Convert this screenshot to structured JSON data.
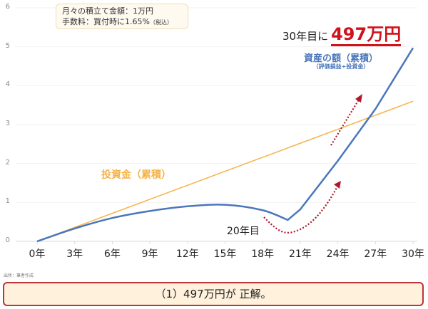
{
  "info_box": {
    "line1": "月々の積立て金額：1万円",
    "line2_main": "手数料：買付時に1.65%",
    "line2_small": "（税込）"
  },
  "headline": {
    "prefix": "30年目に",
    "value": "497万円"
  },
  "labels": {
    "asset_title": "資産の額（累積）",
    "asset_subtitle": "（評価損益+投資金）",
    "invest_title": "投資金（累積）",
    "year20": "20年目"
  },
  "source_note": "出所：筆者作成",
  "answer": "（1）497万円が 正解。",
  "colors": {
    "asset_line": "#4a76bb",
    "invest_line": "#f6b34a",
    "arrow": "#b0182a",
    "headline_red": "#d0121b",
    "answer_border": "#c0333b",
    "answer_bg": "#fff1dc"
  },
  "chart_data": {
    "type": "line",
    "title": "",
    "xlabel": "",
    "ylabel": "",
    "x": [
      0,
      3,
      6,
      9,
      12,
      15,
      18,
      20,
      21,
      24,
      27,
      30
    ],
    "x_tick_labels": [
      "0年",
      "3年",
      "6年",
      "9年",
      "12年",
      "15年",
      "18年",
      "21年",
      "24年",
      "27年",
      "30年"
    ],
    "y_ticks": [
      0,
      1,
      2,
      3,
      4,
      5,
      6
    ],
    "ylim": [
      0,
      6
    ],
    "xlim": [
      0,
      30
    ],
    "grid": true,
    "series": [
      {
        "name": "資産の額（累積）",
        "values": [
          0,
          0.33,
          0.6,
          0.78,
          0.9,
          0.94,
          0.8,
          0.55,
          0.82,
          2.07,
          3.4,
          4.97
        ]
      },
      {
        "name": "投資金（累積）",
        "values": [
          0,
          0.36,
          0.72,
          1.08,
          1.44,
          1.8,
          2.16,
          2.4,
          2.52,
          2.88,
          3.24,
          3.6
        ]
      }
    ],
    "annotations": [
      "30年目に497万円",
      "20年目"
    ]
  }
}
